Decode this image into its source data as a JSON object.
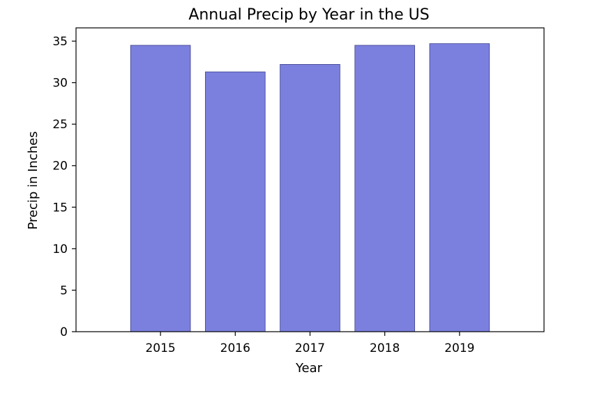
{
  "chart_data": {
    "type": "bar",
    "title": "Annual Precip by Year in the US",
    "xlabel": "Year",
    "ylabel": "Precip in Inches",
    "categories": [
      "2015",
      "2016",
      "2017",
      "2018",
      "2019"
    ],
    "values": [
      34.5,
      31.3,
      32.2,
      34.5,
      34.7
    ],
    "ylim": [
      0,
      36.6
    ],
    "yticks": [
      0,
      5,
      10,
      15,
      20,
      25,
      30,
      35
    ],
    "grid": false,
    "colors": {
      "bar_fill": "#7b80de",
      "bar_edge": "#3c3f8a",
      "axis": "#000000"
    }
  }
}
